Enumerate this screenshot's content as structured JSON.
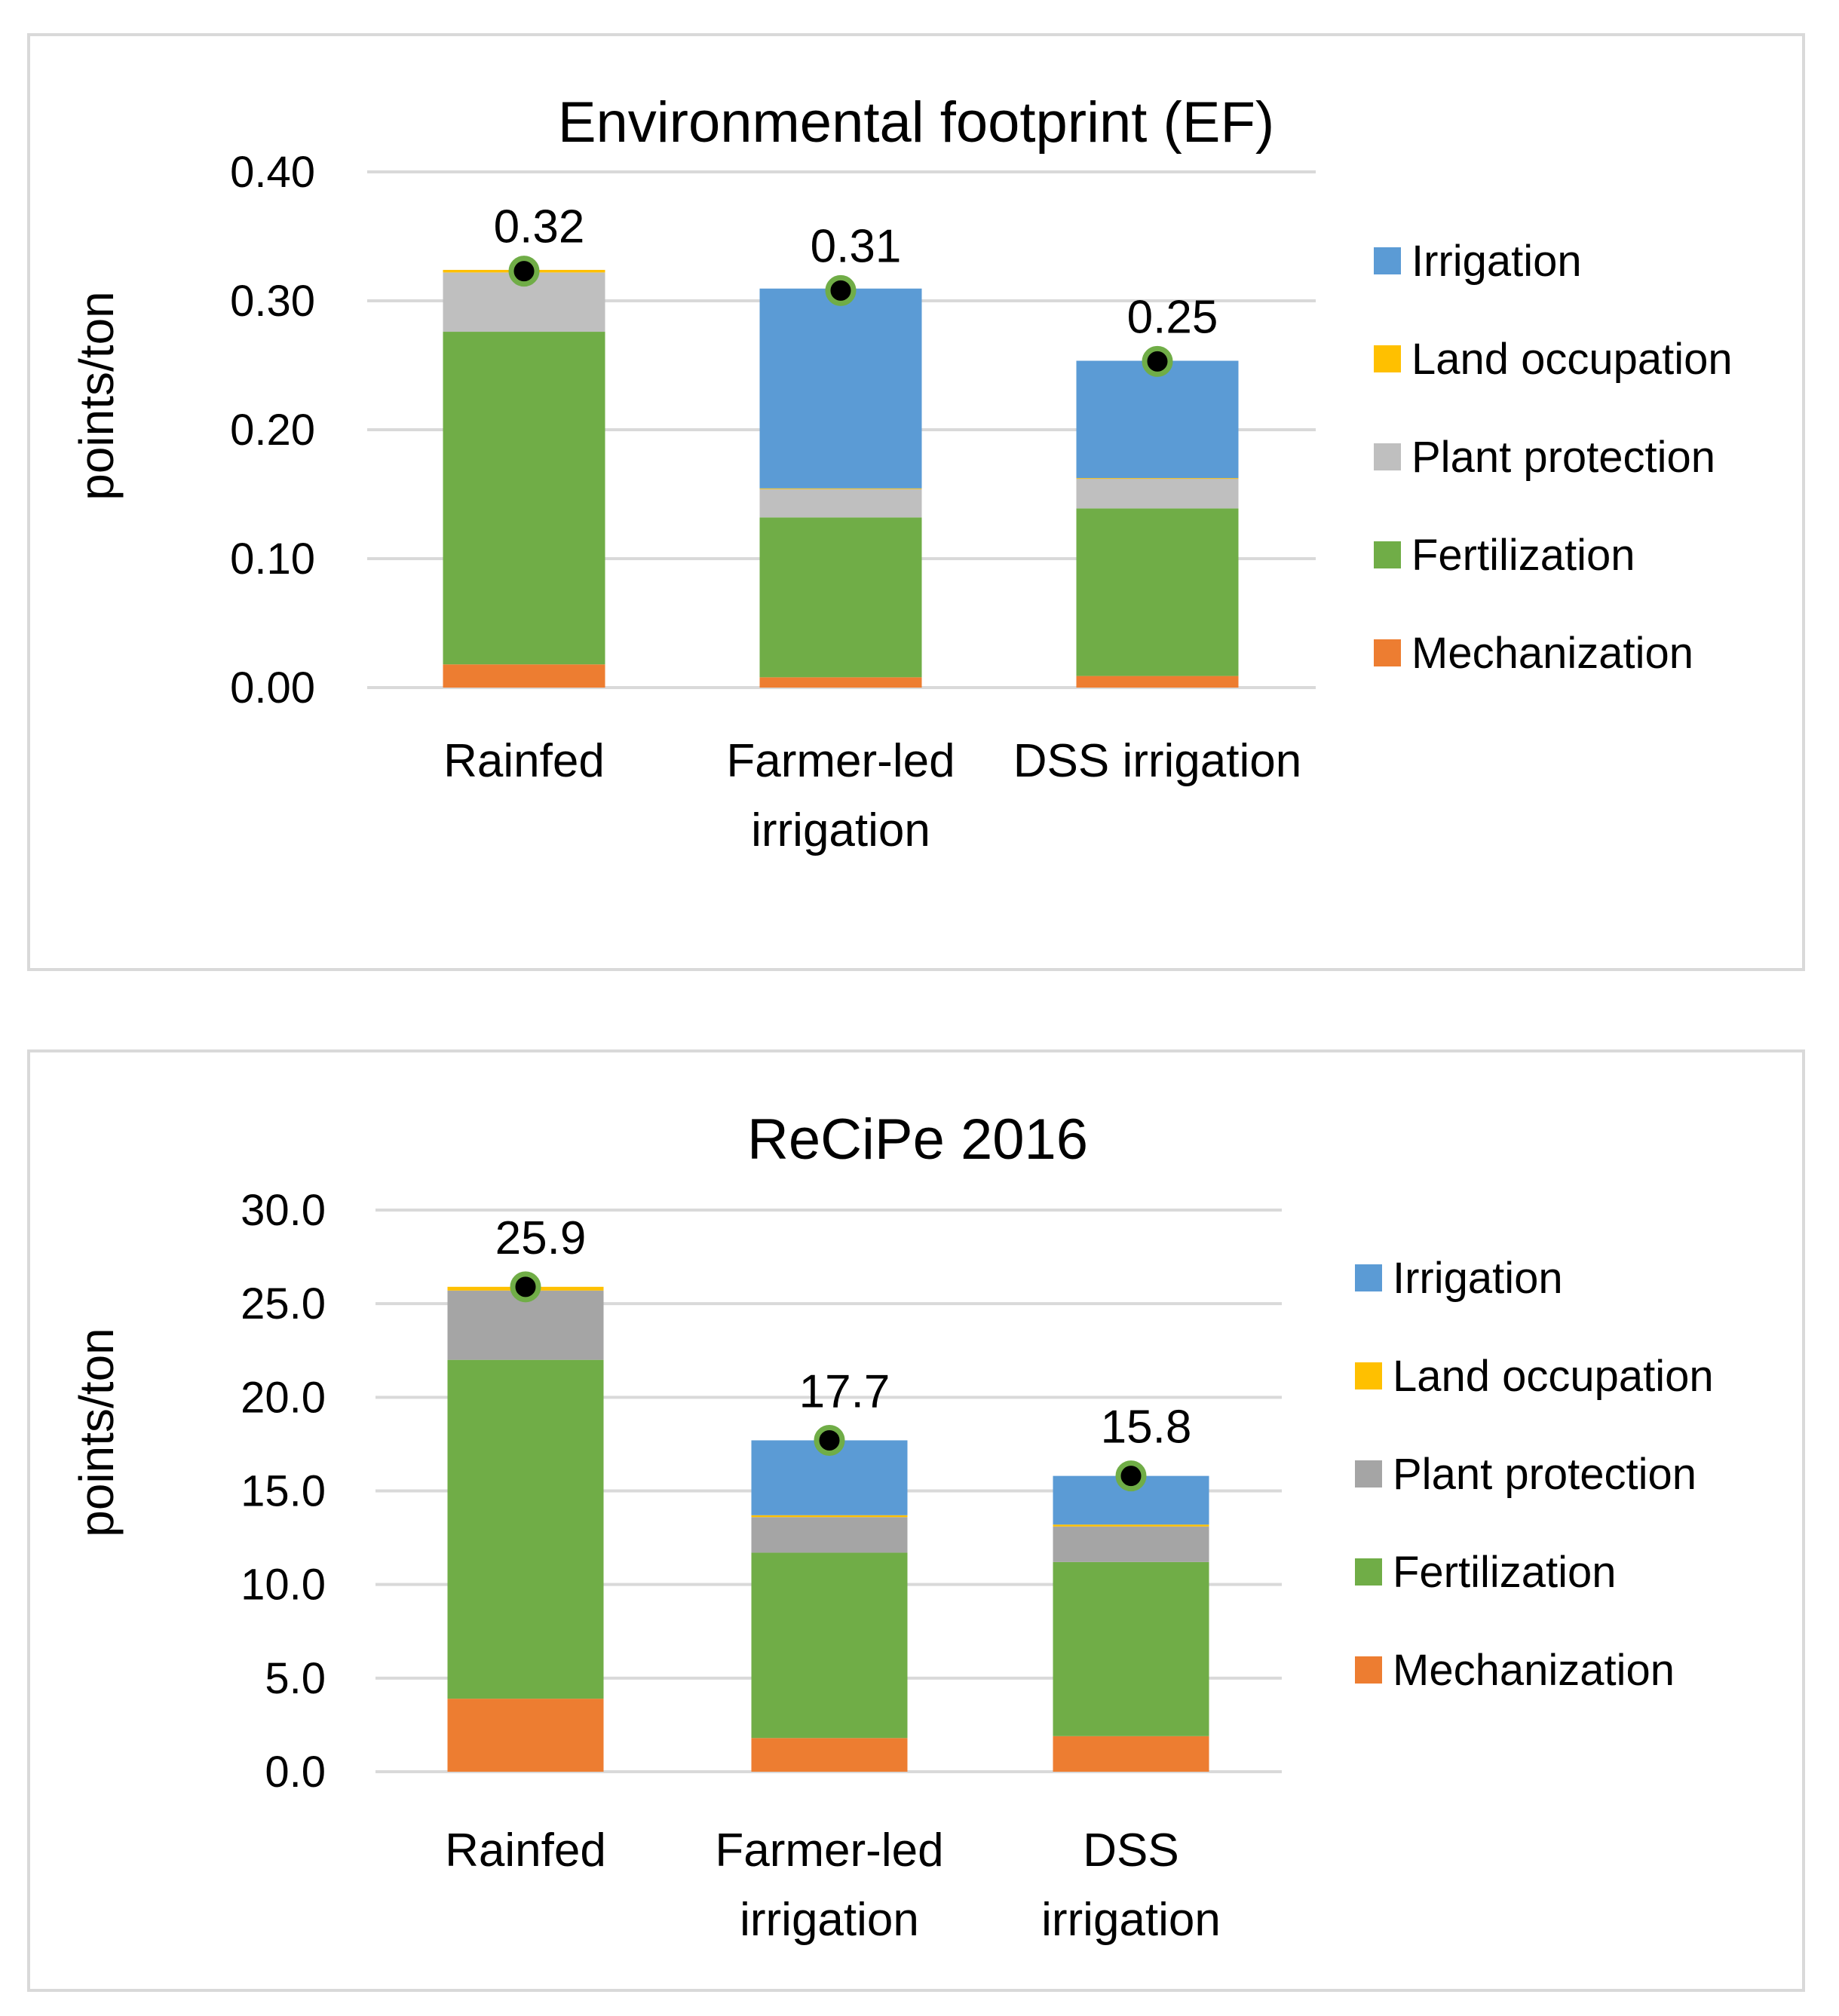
{
  "chart_data": [
    {
      "type": "bar",
      "stacked": true,
      "title": "Environmental footprint (EF)",
      "ylabel": "points/ton",
      "ylim": [
        0,
        0.4
      ],
      "yticks": [
        "0.00",
        "0.10",
        "0.20",
        "0.30",
        "0.40"
      ],
      "ytick_values": [
        0,
        0.1,
        0.2,
        0.3,
        0.4
      ],
      "categories": [
        [
          "Rainfed"
        ],
        [
          "Farmer-led",
          "irrigation"
        ],
        [
          "DSS irrigation"
        ]
      ],
      "series": [
        {
          "name": "Mechanization",
          "color": "#ED7D31",
          "values": [
            0.018,
            0.008,
            0.009
          ]
        },
        {
          "name": "Fertilization",
          "color": "#70AD47",
          "values": [
            0.258,
            0.124,
            0.13
          ]
        },
        {
          "name": "Plant protection",
          "color": "#BFBFBF",
          "values": [
            0.046,
            0.022,
            0.023
          ]
        },
        {
          "name": "Land occupation",
          "color": "#FFC000",
          "values": [
            0.002,
            0.0005,
            0.0005
          ]
        },
        {
          "name": "Irrigation",
          "color": "#5B9BD5",
          "values": [
            0,
            0.155,
            0.091
          ]
        }
      ],
      "totals": [
        0.323,
        0.308,
        0.253
      ],
      "total_labels": [
        "0.32",
        "0.31",
        "0.25"
      ],
      "legend_order": [
        "Irrigation",
        "Land occupation",
        "Plant protection",
        "Fertilization",
        "Mechanization"
      ],
      "legend": "right"
    },
    {
      "type": "bar",
      "stacked": true,
      "title": "ReCiPe 2016",
      "ylabel": "points/ton",
      "ylim": [
        0,
        30
      ],
      "yticks": [
        "0.0",
        "5.0",
        "10.0",
        "15.0",
        "20.0",
        "25.0",
        "30.0"
      ],
      "ytick_values": [
        0,
        5,
        10,
        15,
        20,
        25,
        30
      ],
      "categories": [
        [
          "Rainfed"
        ],
        [
          "Farmer-led",
          "irrigation"
        ],
        [
          "DSS",
          "irrigation"
        ]
      ],
      "series": [
        {
          "name": "Mechanization",
          "color": "#ED7D31",
          "values": [
            3.9,
            1.8,
            1.9
          ]
        },
        {
          "name": "Fertilization",
          "color": "#70AD47",
          "values": [
            18.1,
            9.9,
            9.3
          ]
        },
        {
          "name": "Plant protection",
          "color": "#A5A5A5",
          "values": [
            3.7,
            1.9,
            1.9
          ]
        },
        {
          "name": "Land occupation",
          "color": "#FFC000",
          "values": [
            0.2,
            0.1,
            0.1
          ]
        },
        {
          "name": "Irrigation",
          "color": "#5B9BD5",
          "values": [
            0,
            4.0,
            2.6
          ]
        }
      ],
      "totals": [
        25.9,
        17.7,
        15.8
      ],
      "total_labels": [
        "25.9",
        "17.7",
        "15.8"
      ],
      "legend_order": [
        "Irrigation",
        "Land occupation",
        "Plant protection",
        "Fertilization",
        "Mechanization"
      ],
      "legend": "right"
    }
  ]
}
